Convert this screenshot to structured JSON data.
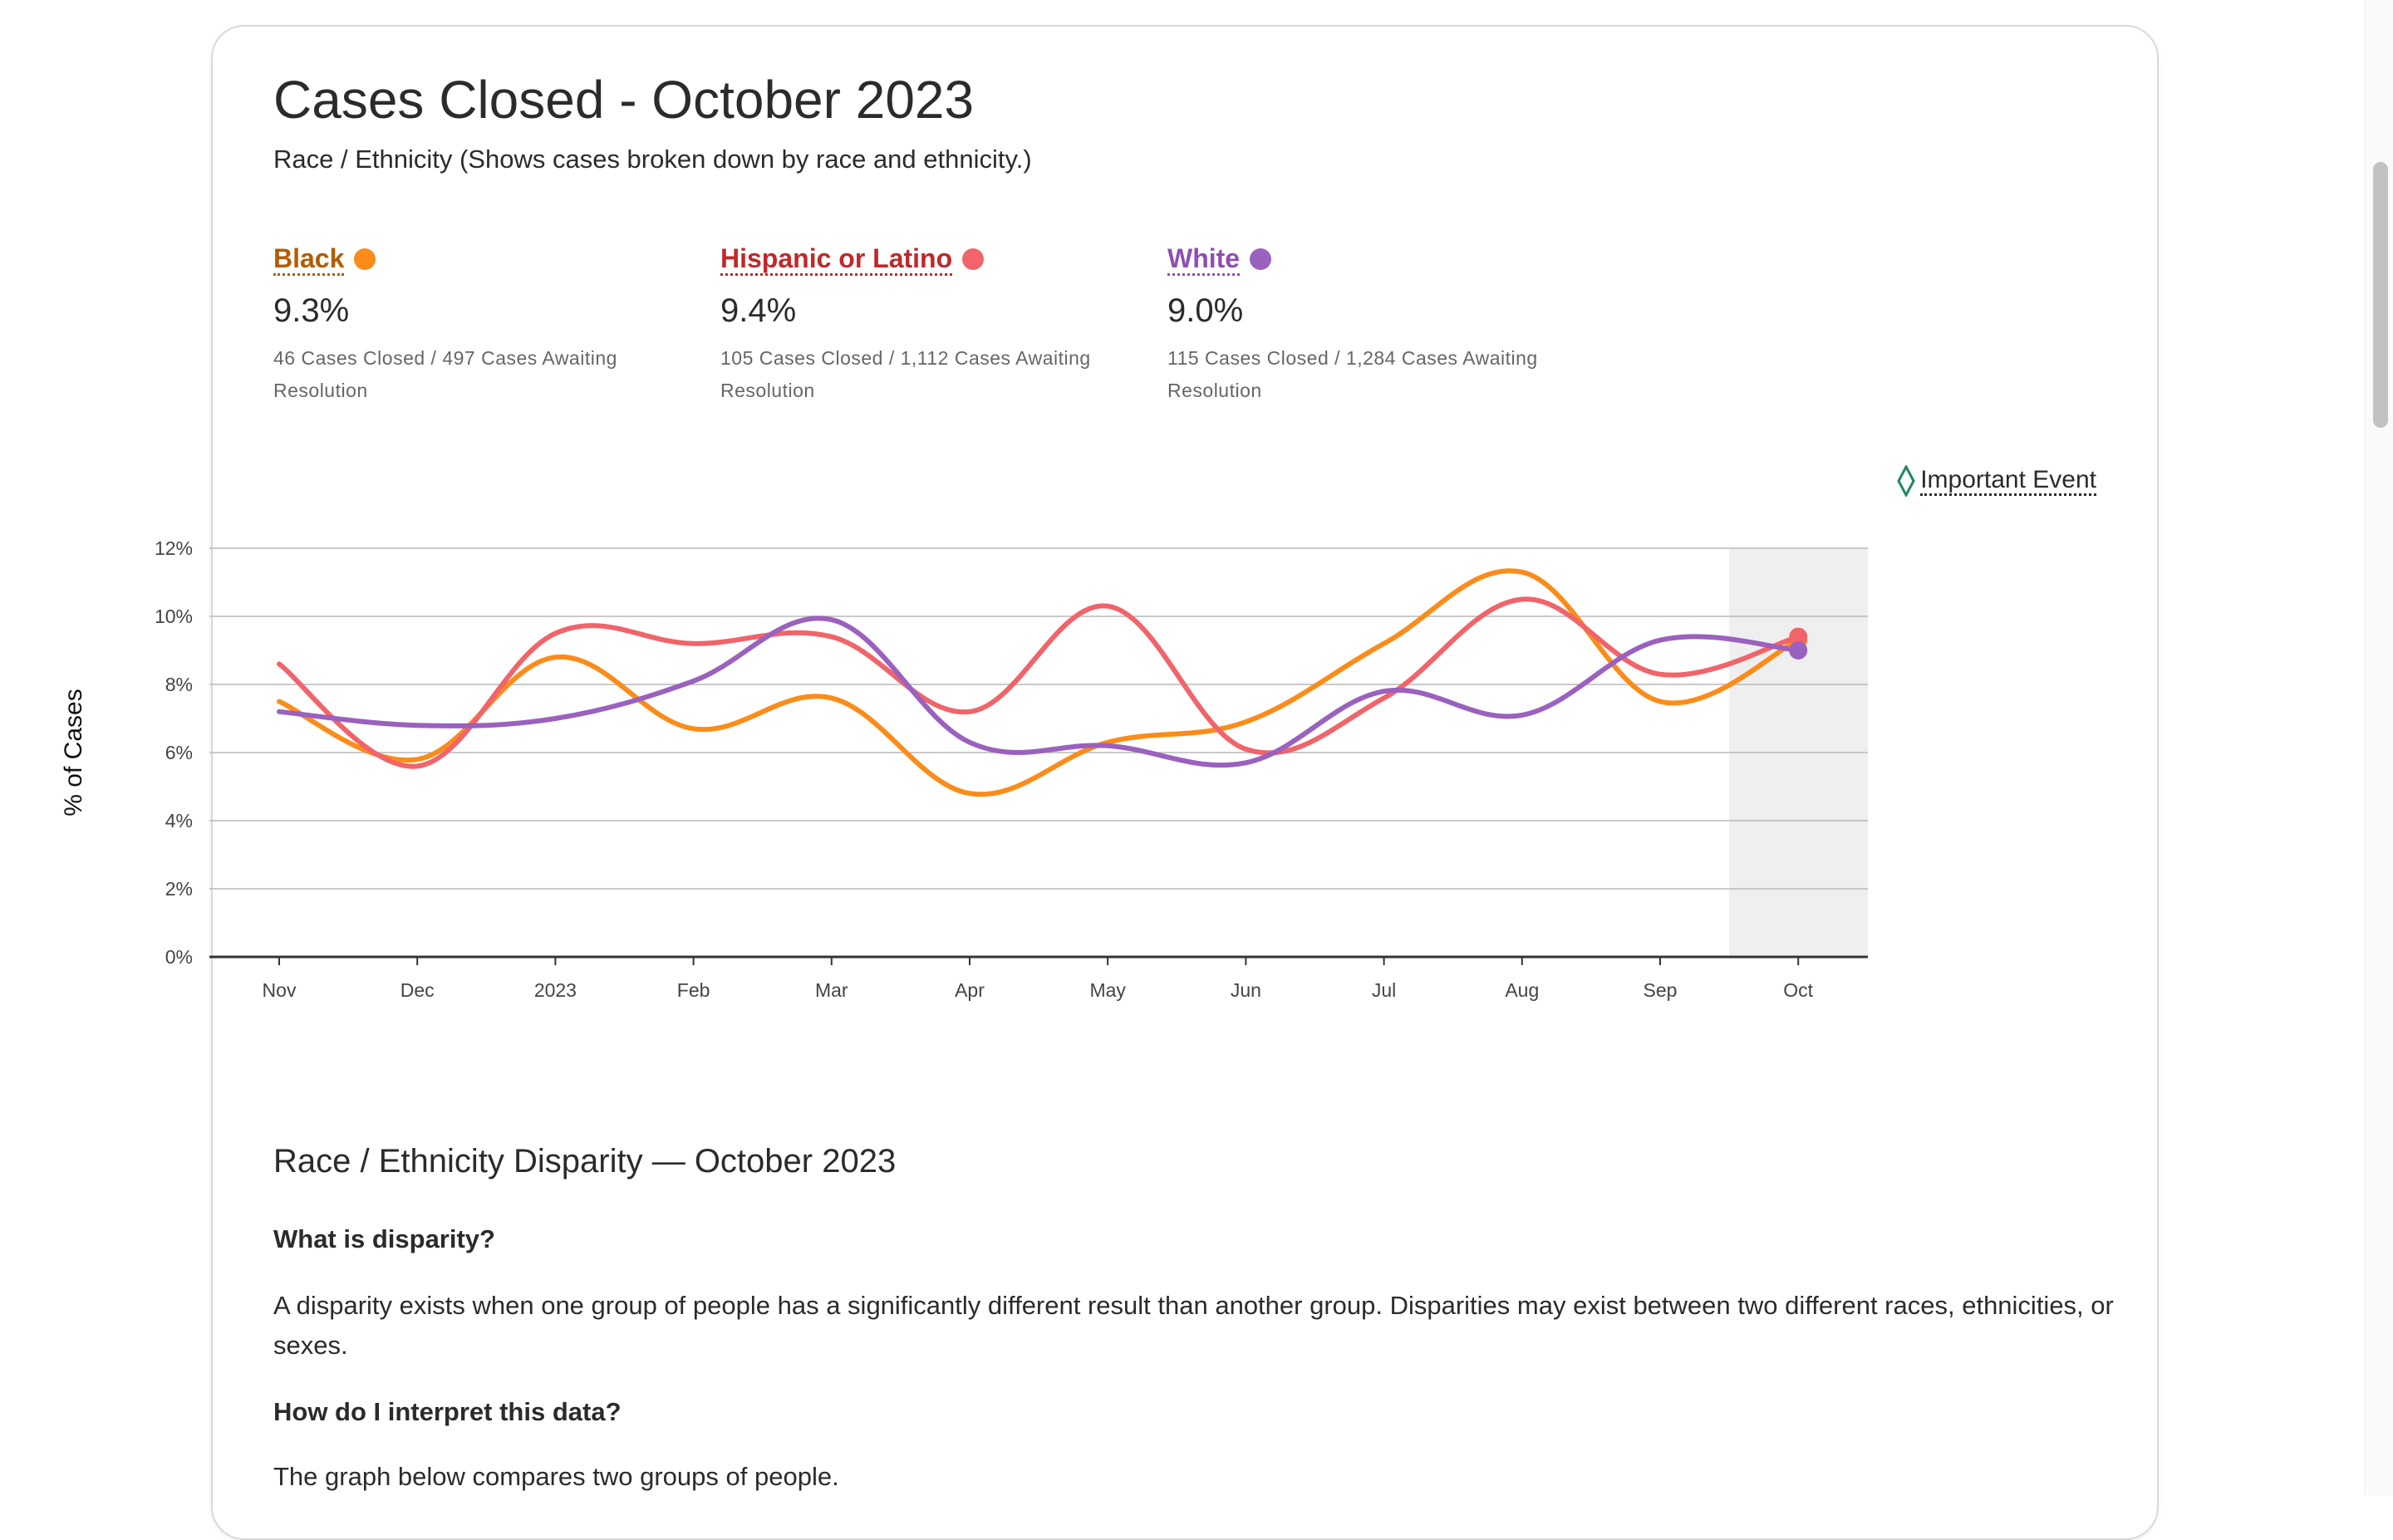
{
  "page": {
    "title": "Cases Closed - October 2023",
    "subtitle": "Race / Ethnicity (Shows cases broken down by race and ethnicity.)",
    "important_event_label": "Important Event"
  },
  "stats": [
    {
      "name": "Black",
      "value": "9.3%",
      "detail": "46 Cases Closed / 497 Cases Awaiting Resolution",
      "color": "#b35c00",
      "dot": "#fb8c1a"
    },
    {
      "name": "Hispanic or Latino",
      "value": "9.4%",
      "detail": "105 Cases Closed / 1,112 Cases Awaiting Resolution",
      "color": "#c0282b",
      "dot": "#f0646a"
    },
    {
      "name": "White",
      "value": "9.0%",
      "detail": "115 Cases Closed / 1,284 Cases Awaiting Resolution",
      "color": "#8e4fb0",
      "dot": "#9b61be"
    }
  ],
  "chart_data": {
    "type": "line",
    "ylabel": "% of Cases",
    "xlabel": "",
    "ylim": [
      0,
      12
    ],
    "yticks": [
      "0%",
      "2%",
      "4%",
      "6%",
      "8%",
      "10%",
      "12%"
    ],
    "categories": [
      "Nov",
      "Dec",
      "2023",
      "Feb",
      "Mar",
      "Apr",
      "May",
      "Jun",
      "Jul",
      "Aug",
      "Sep",
      "Oct"
    ],
    "grid": true,
    "highlight_category": "Oct",
    "series": [
      {
        "name": "Black",
        "color": "#fb8c1a",
        "values": [
          7.5,
          5.8,
          8.8,
          6.7,
          7.6,
          4.8,
          6.3,
          6.9,
          9.2,
          11.3,
          7.5,
          9.3
        ]
      },
      {
        "name": "Hispanic or Latino",
        "color": "#f0646a",
        "values": [
          8.6,
          5.6,
          9.5,
          9.2,
          9.4,
          7.2,
          10.3,
          6.1,
          7.6,
          10.5,
          8.3,
          9.4
        ]
      },
      {
        "name": "White",
        "color": "#9b61be",
        "values": [
          7.2,
          6.8,
          7.0,
          8.1,
          9.9,
          6.3,
          6.2,
          5.7,
          7.8,
          7.1,
          9.3,
          9.0
        ]
      }
    ]
  },
  "disparity": {
    "heading": "Race / Ethnicity Disparity — October 2023",
    "q1": "What is disparity?",
    "p1": "A disparity exists when one group of people has a significantly different result than another group. Disparities may exist between two different races, ethnicities, or sexes.",
    "q2": "How do I interpret this data?",
    "p2": "The graph below compares two groups of people."
  }
}
